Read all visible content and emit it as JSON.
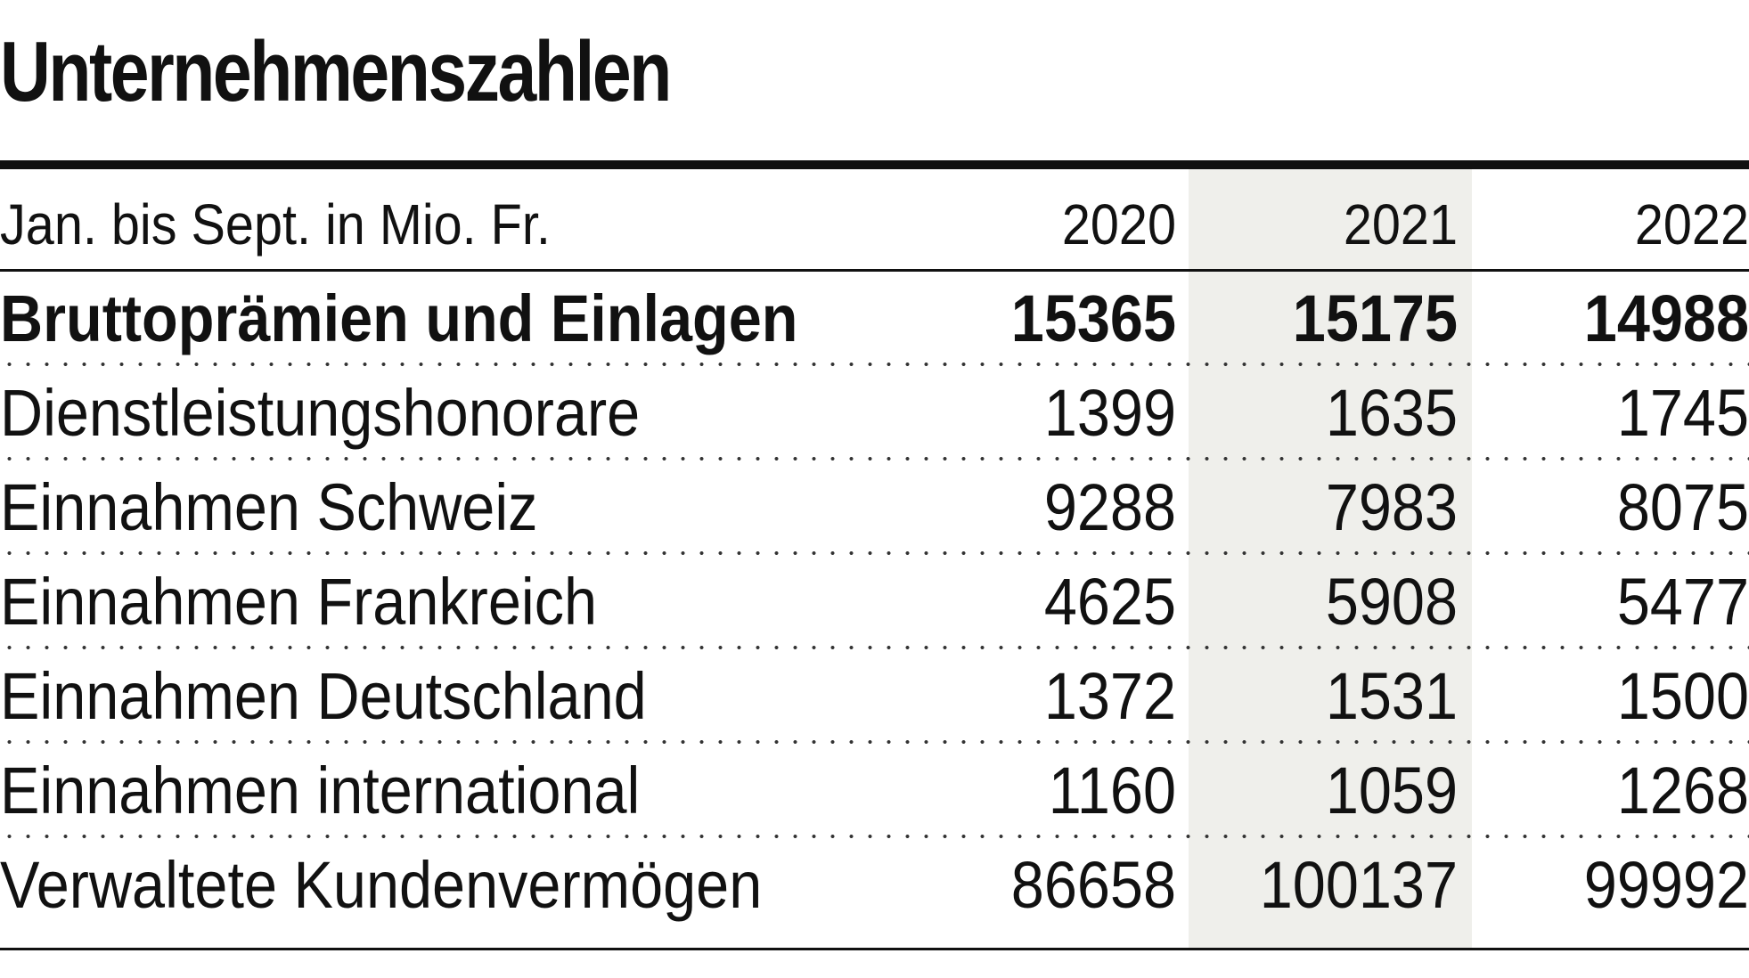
{
  "chart_data": {
    "type": "table",
    "title": "Unternehmenszahlen",
    "header_label": "Jan. bis Sept. in Mio. Fr.",
    "columns": [
      "2020",
      "2021",
      "2022"
    ],
    "highlighted_column": "2021",
    "rows": [
      {
        "label": "Bruttoprämien und Einlagen",
        "values": [
          "15365",
          "15175",
          "14988"
        ],
        "bold": true
      },
      {
        "label": "Dienstleistungshonorare",
        "values": [
          "1399",
          "1635",
          "1745"
        ]
      },
      {
        "label": "Einnahmen Schweiz",
        "values": [
          "9288",
          "7983",
          "8075"
        ]
      },
      {
        "label": "Einnahmen Frankreich",
        "values": [
          "4625",
          "5908",
          "5477"
        ]
      },
      {
        "label": "Einnahmen Deutschland",
        "values": [
          "1372",
          "1531",
          "1500"
        ]
      },
      {
        "label": "Einnahmen international",
        "values": [
          "1160",
          "1059",
          "1268"
        ]
      },
      {
        "label": "Verwaltete Kundenvermögen",
        "values": [
          "86658",
          "100137",
          "99992"
        ]
      }
    ]
  },
  "colors": {
    "text": "#111111",
    "highlight_column_bg": "#efefeb",
    "rule": "#111111"
  }
}
